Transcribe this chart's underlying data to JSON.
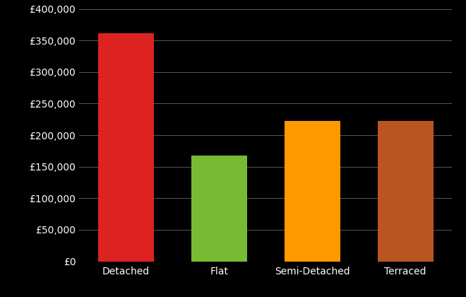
{
  "categories": [
    "Detached",
    "Flat",
    "Semi-Detached",
    "Terraced"
  ],
  "values": [
    362000,
    168000,
    222000,
    222000
  ],
  "bar_colors": [
    "#dd2222",
    "#77bb33",
    "#ff9900",
    "#bb5520"
  ],
  "background_color": "#000000",
  "text_color": "#ffffff",
  "grid_color": "#666666",
  "ylim": [
    0,
    400000
  ],
  "yticks": [
    0,
    50000,
    100000,
    150000,
    200000,
    250000,
    300000,
    350000,
    400000
  ],
  "tick_fontsize": 10,
  "label_fontsize": 10,
  "bar_width": 0.6
}
